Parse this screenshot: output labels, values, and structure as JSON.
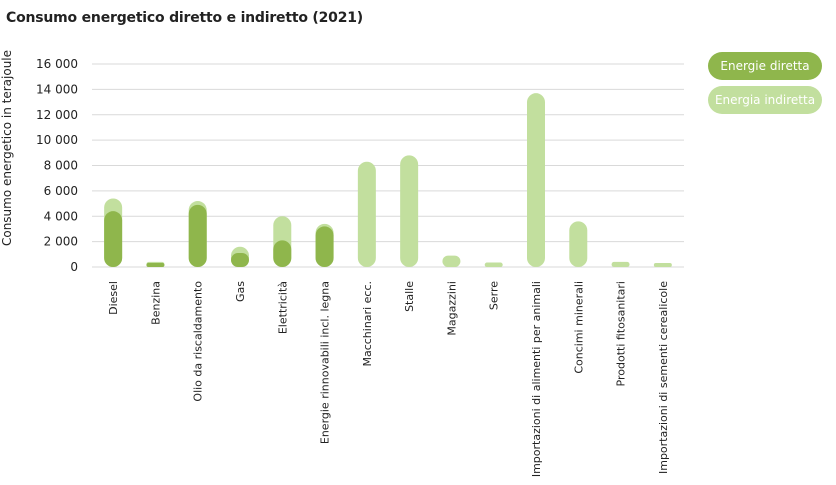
{
  "chart_data": {
    "type": "bar",
    "title": "Consumo energetico diretto e indiretto (2021)",
    "ylabel": "Consumo energetico in terajoule",
    "xlabel": "",
    "ylim": [
      0,
      16000
    ],
    "yticks": [
      0,
      2000,
      4000,
      6000,
      8000,
      10000,
      12000,
      14000,
      16000
    ],
    "ytick_labels": [
      "0",
      "2 000",
      "4 000",
      "6 000",
      "8 000",
      "10 000",
      "12 000",
      "14 000",
      "16 000"
    ],
    "categories": [
      "Diesel",
      "Benzina",
      "Olio da riscaldamento",
      "Gas",
      "Elettricità",
      "Energie rinnovabili incl. legna",
      "Macchinari ecc.",
      "Stalle",
      "Magazzini",
      "Serre",
      "Importazioni di alimenti per animali",
      "Concimi minerali",
      "Prodotti fitosanitari",
      "Importazioni di sementi cerealicole"
    ],
    "series": [
      {
        "name": "Energie diretta",
        "color": "#8fb64c",
        "values": [
          4400,
          300,
          4900,
          1100,
          2100,
          3200,
          0,
          0,
          0,
          0,
          0,
          0,
          0,
          0
        ]
      },
      {
        "name": "Energia indiretta",
        "color": "#c2df9e",
        "values": [
          5400,
          400,
          5200,
          1600,
          4000,
          3400,
          8300,
          8800,
          900,
          350,
          13700,
          3600,
          400,
          60
        ]
      }
    ],
    "legend_position": "top-right"
  }
}
